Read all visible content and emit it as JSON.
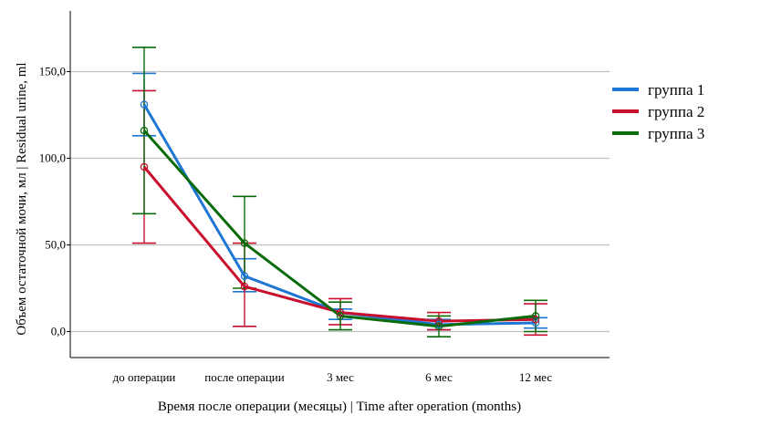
{
  "chart_data": {
    "type": "line",
    "categories": [
      "до операции",
      "после операции",
      "3 мес",
      "6 мес",
      "12 мес"
    ],
    "xlabel": "Время после операции (месяцы) | Time after operation (months)",
    "ylabel": "Объем остаточной мочи, мл | Residual urine, ml",
    "ylim": [
      -15,
      185
    ],
    "yticks": [
      0,
      50,
      100,
      150
    ],
    "ytick_labels": [
      "0,0",
      "50,0",
      "100,0",
      "150,0"
    ],
    "grid": true,
    "legend_position": "right",
    "series": [
      {
        "name": "группа 1",
        "color": "#1f77d4",
        "values": [
          131,
          32,
          11,
          4,
          5
        ],
        "err_low": [
          113,
          23,
          7,
          1,
          2
        ],
        "err_high": [
          149,
          42,
          13,
          7,
          8
        ]
      },
      {
        "name": "группа 2",
        "color": "#c8102e",
        "values": [
          95,
          26,
          11,
          6,
          7
        ],
        "err_low": [
          51,
          3,
          4,
          1,
          -2
        ],
        "err_high": [
          139,
          51,
          19,
          11,
          16
        ]
      },
      {
        "name": "группа 3",
        "color": "#0a6b0a",
        "values": [
          116,
          51,
          9,
          3,
          9
        ],
        "err_low": [
          68,
          25,
          1,
          -3,
          0
        ],
        "err_high": [
          164,
          78,
          17,
          9,
          18
        ]
      }
    ]
  }
}
